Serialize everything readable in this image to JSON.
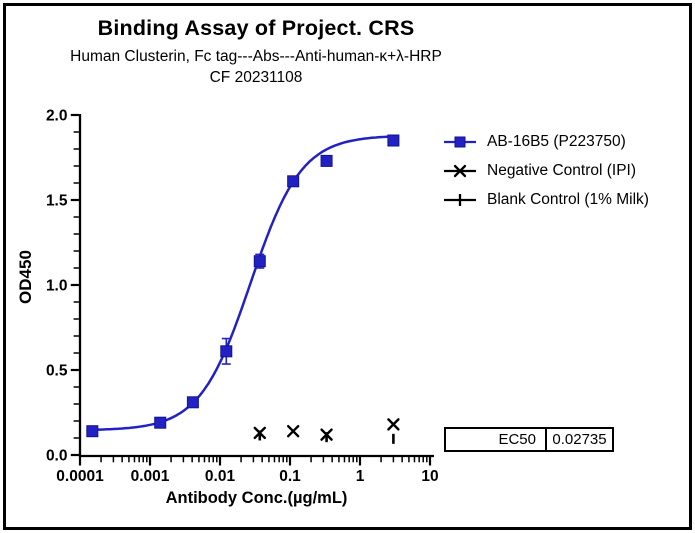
{
  "chart_data": {
    "type": "scatter",
    "title": "Binding Assay of Project. CRS",
    "subtitle": "Human Clusterin, Fc tag---Abs---Anti-human-κ+λ-HRP",
    "code_line": "CF 20231108",
    "xlabel": "Antibody Conc.(µg/mL)",
    "ylabel": "OD450",
    "x_scale": "log",
    "xlim": [
      0.0001,
      10
    ],
    "ylim": [
      0.0,
      2.0
    ],
    "x_tick_labels": [
      "0.0001",
      "0.001",
      "0.01",
      "0.1",
      "1",
      "10"
    ],
    "y_tick_labels": [
      "0.0",
      "0.5",
      "1.0",
      "1.5",
      "2.0"
    ],
    "y_minor_step": 0.1,
    "grid": "off",
    "legend_position": "right-outside",
    "series": [
      {
        "name": "AB-16B5 (P223750)",
        "marker": "filled-square",
        "color": "#2222c4",
        "x": [
          0.00015,
          0.0014,
          0.0041,
          0.0123,
          0.037,
          0.111,
          0.333,
          3
        ],
        "y": [
          0.14,
          0.19,
          0.31,
          0.61,
          1.14,
          1.61,
          1.73,
          1.85
        ],
        "yerr": [
          0,
          0,
          0,
          0.075,
          0.04,
          0,
          0,
          0
        ],
        "fit": {
          "model": "4PL-sigmoid",
          "bottom": 0.145,
          "top": 1.88,
          "ec50": 0.02735,
          "hill": 1.2
        }
      },
      {
        "name": "Negative Control (IPI)",
        "marker": "x",
        "color": "#000000",
        "x": [
          0.037,
          0.111,
          0.333,
          3
        ],
        "y": [
          0.13,
          0.14,
          0.12,
          0.18
        ]
      },
      {
        "name": "Blank Control (1% Milk)",
        "marker": "plus-tick",
        "color": "#000000",
        "x": [
          0.037,
          0.333,
          3
        ],
        "y": [
          0.115,
          0.105,
          0.095
        ]
      }
    ],
    "ec50_table": {
      "label": "EC50",
      "value": "0.02735"
    }
  },
  "colors": {
    "curve_blue": "#2222c4",
    "marker_edge": "#13138e",
    "axis": "#000000",
    "frame": "#000000"
  }
}
